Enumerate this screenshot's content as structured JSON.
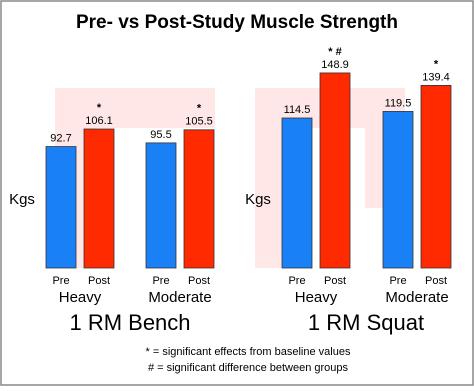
{
  "title": "Pre- vs Post-Study Muscle Strength",
  "chart_data": [
    {
      "type": "bar",
      "title": "1 RM Bench",
      "ylabel": "Kgs",
      "categories": [
        "Heavy",
        "Moderate"
      ],
      "series": [
        {
          "name": "Pre",
          "color": "#1a80f5",
          "values": [
            92.7,
            95.5
          ]
        },
        {
          "name": "Post",
          "color": "#ff2a00",
          "values": [
            106.1,
            105.5
          ],
          "annotations": [
            "*",
            "*"
          ]
        }
      ]
    },
    {
      "type": "bar",
      "title": "1 RM Squat",
      "ylabel": "Kgs",
      "categories": [
        "Heavy",
        "Moderate"
      ],
      "series": [
        {
          "name": "Pre",
          "color": "#1a80f5",
          "values": [
            114.5,
            119.5
          ]
        },
        {
          "name": "Post",
          "color": "#ff2a00",
          "values": [
            148.9,
            139.4
          ],
          "annotations": [
            "* #",
            "*"
          ]
        }
      ]
    }
  ],
  "notes": [
    "* = significant effects from baseline values",
    "# = significant difference between groups"
  ]
}
